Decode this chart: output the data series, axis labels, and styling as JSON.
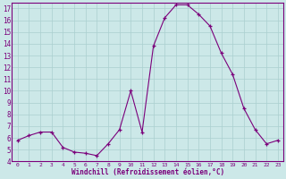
{
  "x": [
    0,
    1,
    2,
    3,
    4,
    5,
    6,
    7,
    8,
    9,
    10,
    11,
    12,
    13,
    14,
    15,
    16,
    17,
    18,
    19,
    20,
    21,
    22,
    23
  ],
  "y": [
    5.8,
    6.2,
    6.5,
    6.5,
    5.2,
    4.8,
    4.7,
    4.5,
    5.5,
    6.7,
    10.0,
    6.5,
    13.8,
    16.2,
    17.3,
    17.3,
    16.5,
    15.5,
    13.2,
    11.4,
    8.5,
    6.7,
    5.5,
    5.8
  ],
  "line_color": "#7b007b",
  "marker": "+",
  "bg_color": "#cce8e8",
  "grid_color": "#aacfcf",
  "xlabel": "Windchill (Refroidissement éolien,°C)",
  "ylim": [
    4,
    17.5
  ],
  "xlim": [
    -0.5,
    23.5
  ],
  "yticks": [
    4,
    5,
    6,
    7,
    8,
    9,
    10,
    11,
    12,
    13,
    14,
    15,
    16,
    17
  ],
  "xticks": [
    0,
    1,
    2,
    3,
    4,
    5,
    6,
    7,
    8,
    9,
    10,
    11,
    12,
    13,
    14,
    15,
    16,
    17,
    18,
    19,
    20,
    21,
    22,
    23
  ],
  "font_color": "#7b007b",
  "spine_color": "#7b007b"
}
